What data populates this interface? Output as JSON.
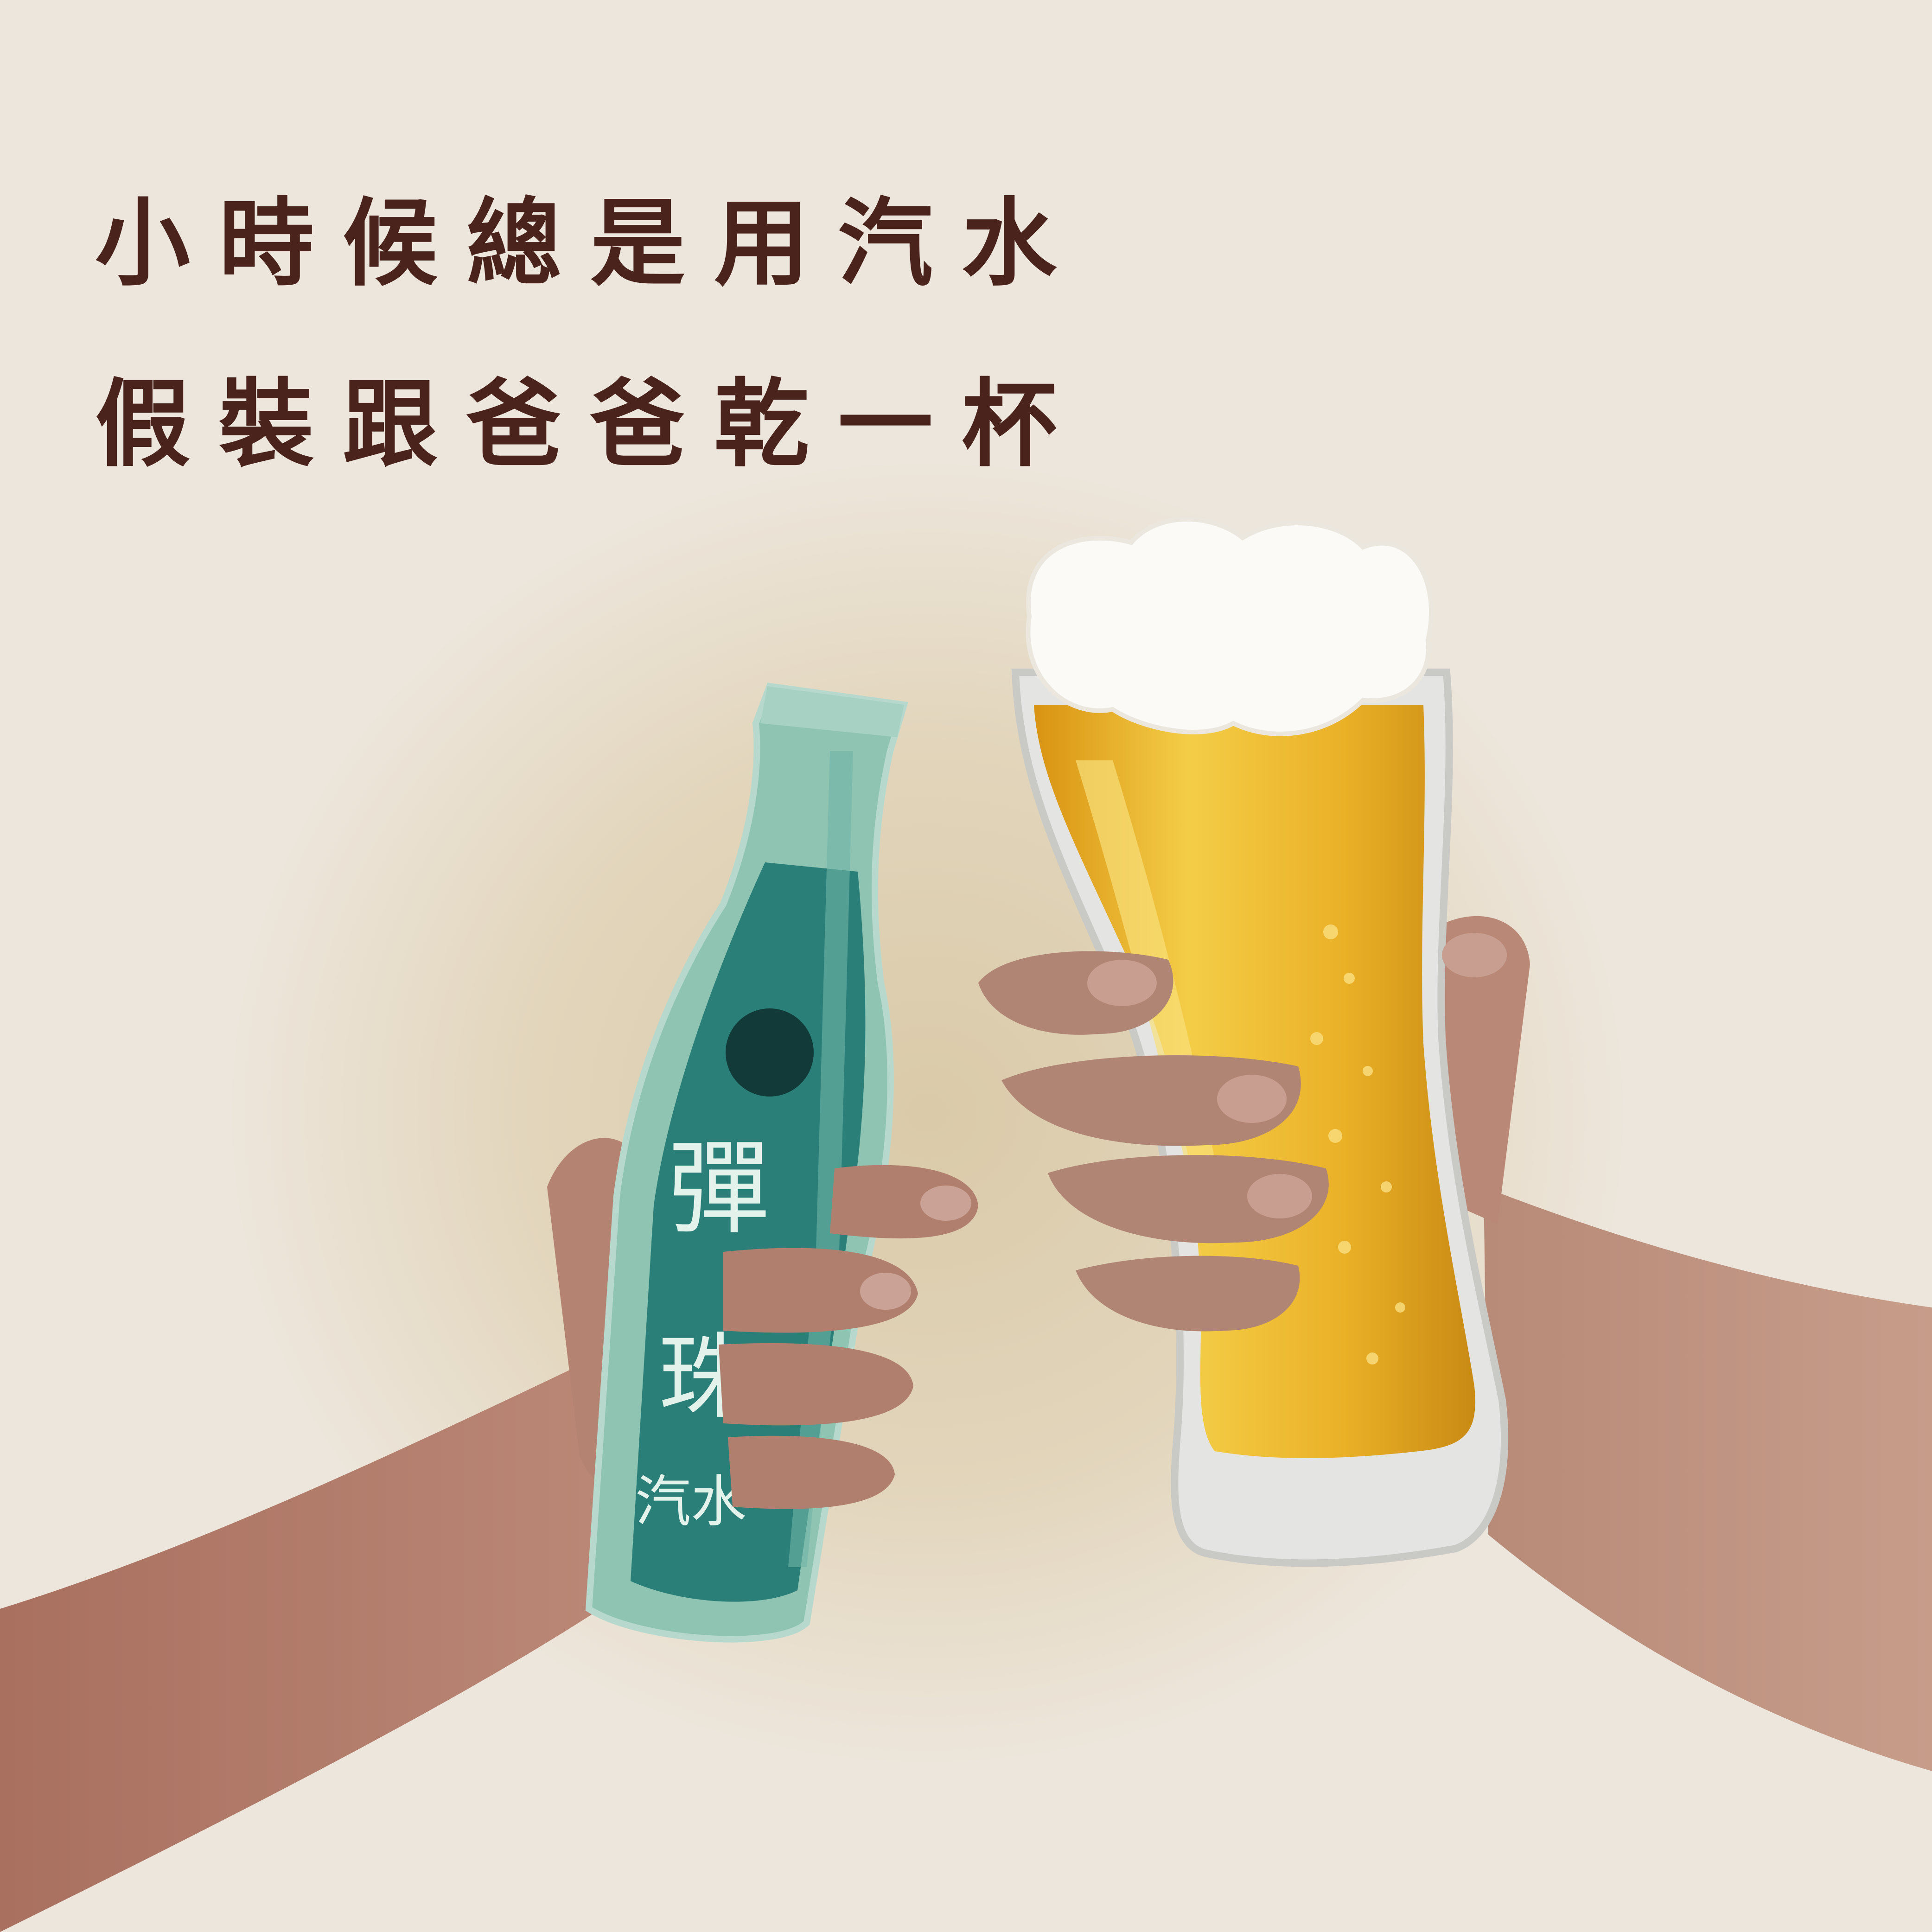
{
  "caption": {
    "line1": "小時候總是用汽水",
    "line2": "假裝跟爸爸乾一杯"
  },
  "bottle_label": {
    "char1": "彈",
    "char2": "珠",
    "subtitle": "汽水"
  },
  "palette": {
    "background": "#ede6dc",
    "caption_text": "#4a231c",
    "bottle_glass": "#8fc4b3",
    "bottle_label": "#2a7f78",
    "beer": "#eab127",
    "foam": "#fbfaf6",
    "skin": "#b98877"
  }
}
